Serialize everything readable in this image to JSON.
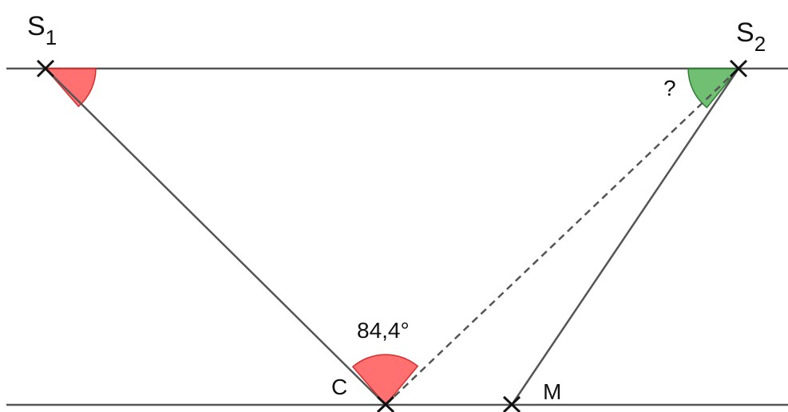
{
  "points": {
    "s1": {
      "label": "S",
      "sub": "1"
    },
    "s2": {
      "label": "S",
      "sub": "2"
    },
    "c": {
      "label": "C"
    },
    "m": {
      "label": "M"
    }
  },
  "angles": {
    "at_c": {
      "label": "84,4°",
      "color": "#ff4d4d"
    },
    "at_s1": {
      "color": "#ff4d4d"
    },
    "at_s2": {
      "label": "?",
      "color": "#4caf50"
    }
  },
  "colors": {
    "line": "#555555",
    "mark": "#111111"
  }
}
